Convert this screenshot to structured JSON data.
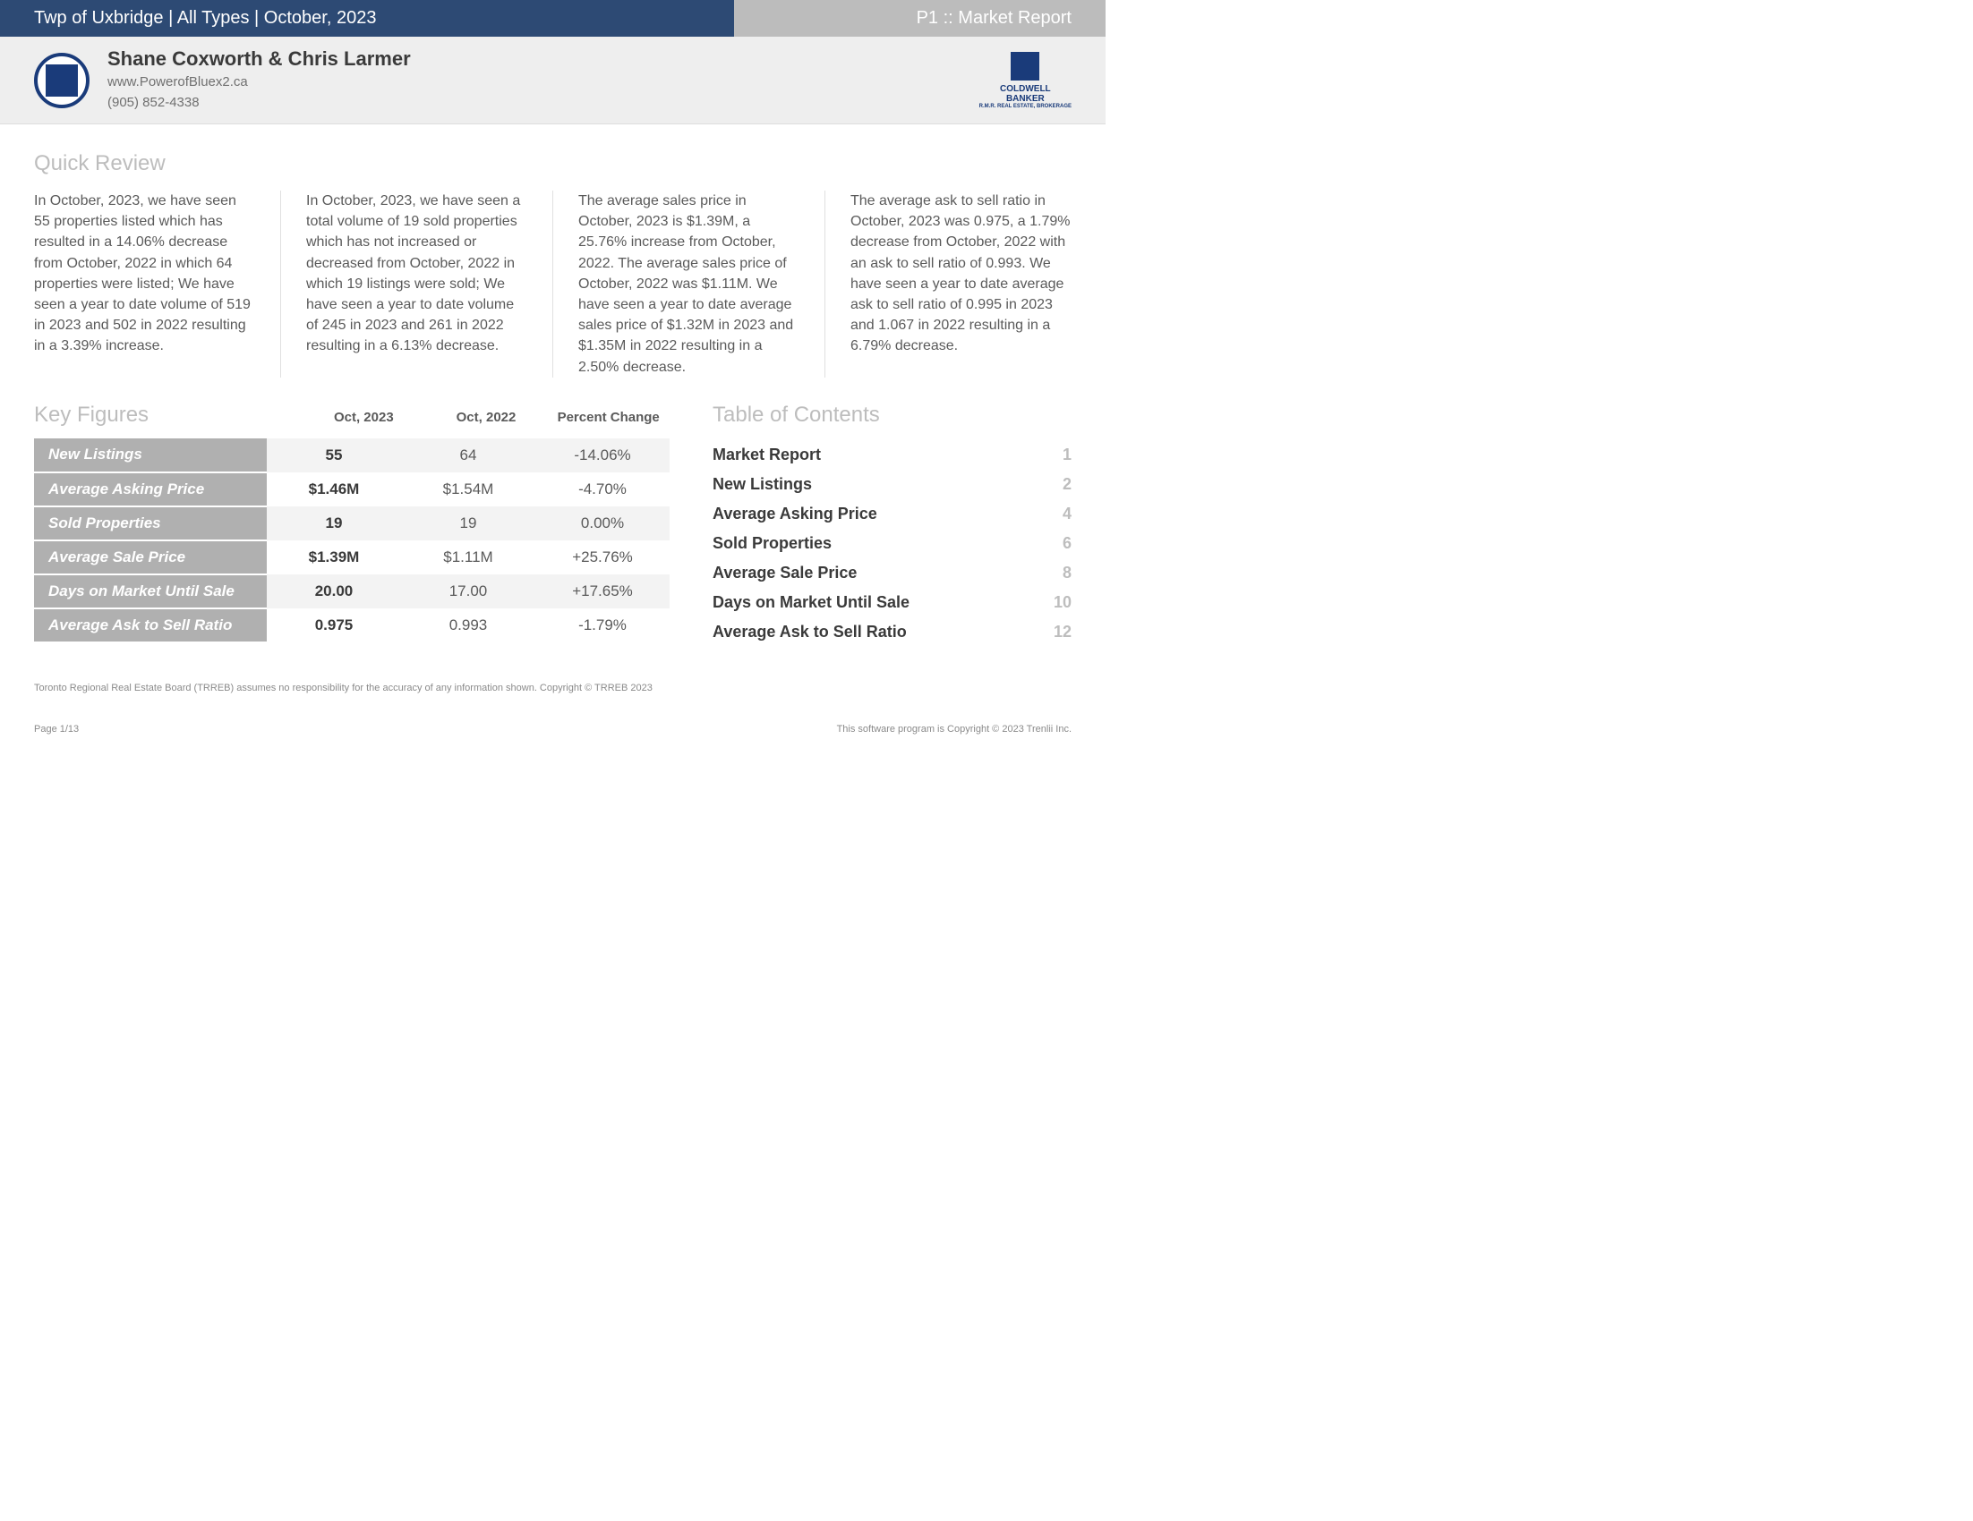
{
  "colors": {
    "topbar_bg": "#2d4a74",
    "topbar_right_bg": "#bcbcbc",
    "header_bg": "#eeeeee",
    "section_title": "#bdbdbd",
    "kf_label_bg": "#b0b0b0",
    "text": "#3a3a3a",
    "muted": "#5a5a5a"
  },
  "topbar": {
    "left": "Twp of Uxbridge | All Types | October, 2023",
    "right": "P1 :: Market Report"
  },
  "agent": {
    "name": "Shane Coxworth & Chris Larmer",
    "website": "www.PowerofBluex2.ca",
    "phone": "(905) 852-4338"
  },
  "brand": {
    "line1": "COLDWELL",
    "line2": "BANKER",
    "sub": "R.M.R. REAL ESTATE, BROKERAGE"
  },
  "quick_review": {
    "title": "Quick Review",
    "cols": [
      "In October, 2023, we have seen 55 properties listed which has resulted in a 14.06% decrease from October, 2022 in which 64 properties were listed; We have seen a year to date volume of 519 in 2023 and 502 in 2022 resulting in a 3.39% increase.",
      "In October, 2023, we have seen a total volume of 19 sold properties which has not increased or decreased from October, 2022 in which 19 listings were sold; We have seen a year to date volume of 245 in 2023 and 261 in 2022 resulting in a 6.13% decrease.",
      "The average sales price in October, 2023 is $1.39M, a 25.76% increase from October, 2022. The average sales price of October, 2022 was $1.11M. We have seen a year to date average sales price of $1.32M in 2023 and $1.35M in 2022 resulting in a 2.50% decrease.",
      "The average ask to sell ratio in October, 2023 was 0.975, a 1.79% decrease from October, 2022 with an ask to sell ratio of 0.993. We have seen a year to date average ask to sell ratio of 0.995 in 2023 and 1.067 in 2022 resulting in a 6.79% decrease."
    ]
  },
  "key_figures": {
    "title": "Key Figures",
    "headers": [
      "Oct, 2023",
      "Oct, 2022",
      "Percent Change"
    ],
    "rows": [
      {
        "label": "New Listings",
        "c1": "55",
        "c2": "64",
        "c3": "-14.06%"
      },
      {
        "label": "Average Asking Price",
        "c1": "$1.46M",
        "c2": "$1.54M",
        "c3": "-4.70%"
      },
      {
        "label": "Sold Properties",
        "c1": "19",
        "c2": "19",
        "c3": "0.00%"
      },
      {
        "label": "Average Sale Price",
        "c1": "$1.39M",
        "c2": "$1.11M",
        "c3": "+25.76%"
      },
      {
        "label": "Days on Market Until Sale",
        "c1": "20.00",
        "c2": "17.00",
        "c3": "+17.65%"
      },
      {
        "label": "Average Ask to Sell Ratio",
        "c1": "0.975",
        "c2": "0.993",
        "c3": "-1.79%"
      }
    ]
  },
  "toc": {
    "title": "Table of Contents",
    "items": [
      {
        "label": "Market Report",
        "page": "1"
      },
      {
        "label": "New Listings",
        "page": "2"
      },
      {
        "label": "Average Asking Price",
        "page": "4"
      },
      {
        "label": "Sold Properties",
        "page": "6"
      },
      {
        "label": "Average Sale Price",
        "page": "8"
      },
      {
        "label": "Days on Market Until Sale",
        "page": "10"
      },
      {
        "label": "Average Ask to Sell Ratio",
        "page": "12"
      }
    ]
  },
  "footer": {
    "disclaimer": "Toronto Regional Real Estate Board (TRREB) assumes no responsibility for the accuracy of any information shown. Copyright © TRREB 2023",
    "page": "Page 1/13",
    "right": "This software program is Copyright © 2023 Trenlii Inc."
  }
}
